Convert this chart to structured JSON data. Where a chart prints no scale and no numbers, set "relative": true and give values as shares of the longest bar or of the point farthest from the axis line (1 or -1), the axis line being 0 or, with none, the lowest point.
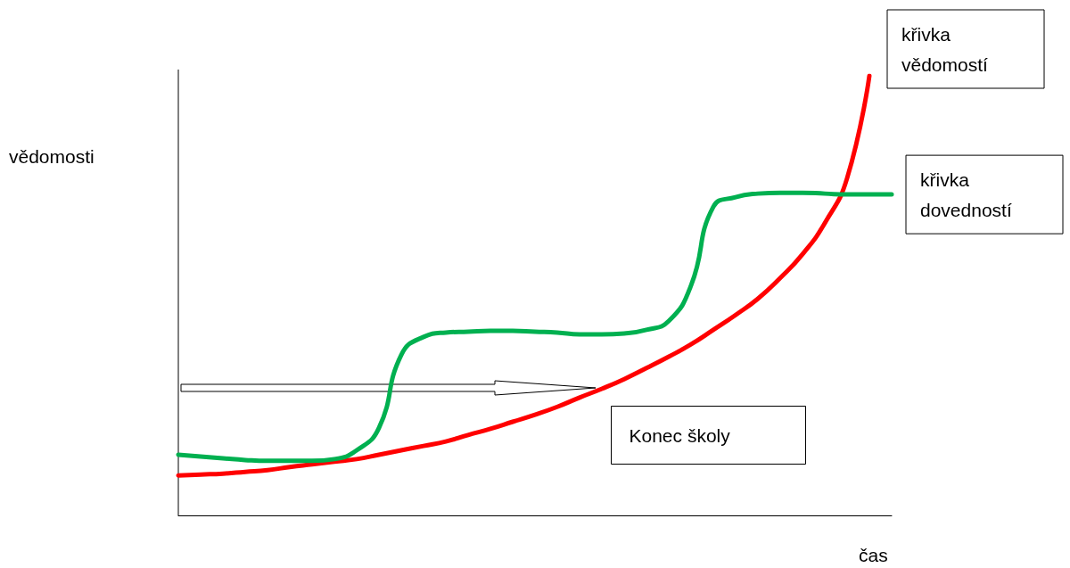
{
  "chart_data": {
    "type": "line",
    "relative": true,
    "xlabel": "čas",
    "ylabel": "vědomosti",
    "legend": false,
    "grid": false,
    "marker": "none",
    "categories": [
      null,
      null,
      null,
      null,
      null,
      null,
      null,
      null,
      null,
      null,
      null,
      null,
      null,
      null,
      null,
      null,
      null,
      null,
      null,
      null,
      null,
      null,
      null,
      null,
      null,
      null,
      null,
      null,
      null,
      null,
      null,
      null,
      null
    ],
    "series": [
      {
        "name": "křivka vědomostí",
        "color": "#ff0000",
        "values": [
          0.091,
          0.093,
          0.095,
          0.099,
          0.103,
          0.11,
          0.116,
          0.122,
          0.128,
          0.138,
          0.148,
          0.158,
          0.168,
          0.183,
          0.197,
          0.213,
          0.229,
          0.247,
          0.268,
          0.288,
          0.31,
          0.335,
          0.361,
          0.389,
          0.422,
          0.456,
          0.493,
          0.54,
          0.594,
          0.665,
          0.767,
          1.0,
          null
        ]
      },
      {
        "name": "křivka dovedností",
        "color": "#00b050",
        "values": [
          0.138,
          0.134,
          0.13,
          0.126,
          0.124,
          0.124,
          0.124,
          0.128,
          0.148,
          0.199,
          0.365,
          0.406,
          0.416,
          0.418,
          0.42,
          0.42,
          0.418,
          0.416,
          0.412,
          0.412,
          0.414,
          0.422,
          0.442,
          0.523,
          0.702,
          0.724,
          0.732,
          0.734,
          0.734,
          0.732,
          0.73,
          0.73,
          0.73
        ]
      }
    ],
    "annotations": [
      "Konec školy"
    ]
  }
}
